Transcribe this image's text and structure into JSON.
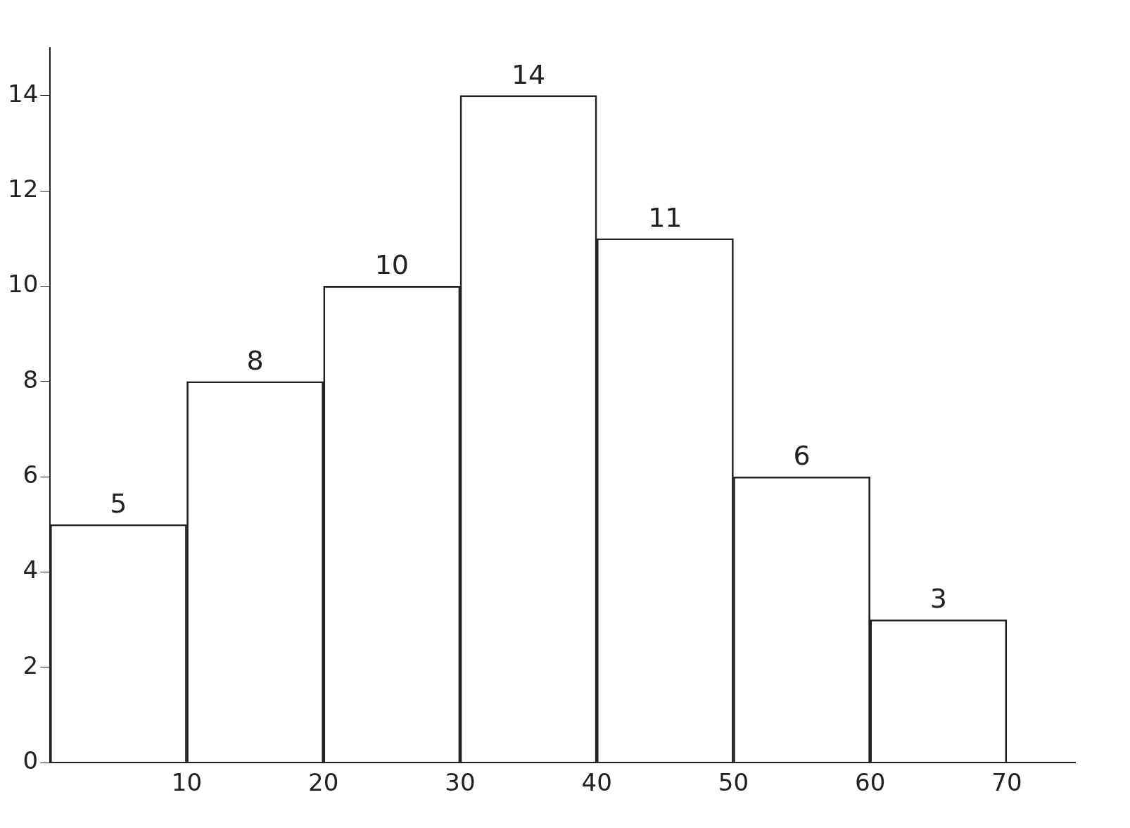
{
  "chart_data": {
    "type": "histogram",
    "bins": [
      0,
      10,
      20,
      30,
      40,
      50,
      60,
      70
    ],
    "values": [
      5,
      8,
      10,
      14,
      11,
      6,
      3
    ],
    "color": "#222222",
    "data_labels": true,
    "xlim": [
      0,
      75
    ],
    "xticks": [
      10,
      20,
      30,
      40,
      50,
      60,
      70
    ],
    "ylim": [
      0,
      15
    ],
    "yticks": [
      0,
      2,
      4,
      6,
      8,
      10,
      12,
      14
    ],
    "grid": false,
    "legend": false
  }
}
